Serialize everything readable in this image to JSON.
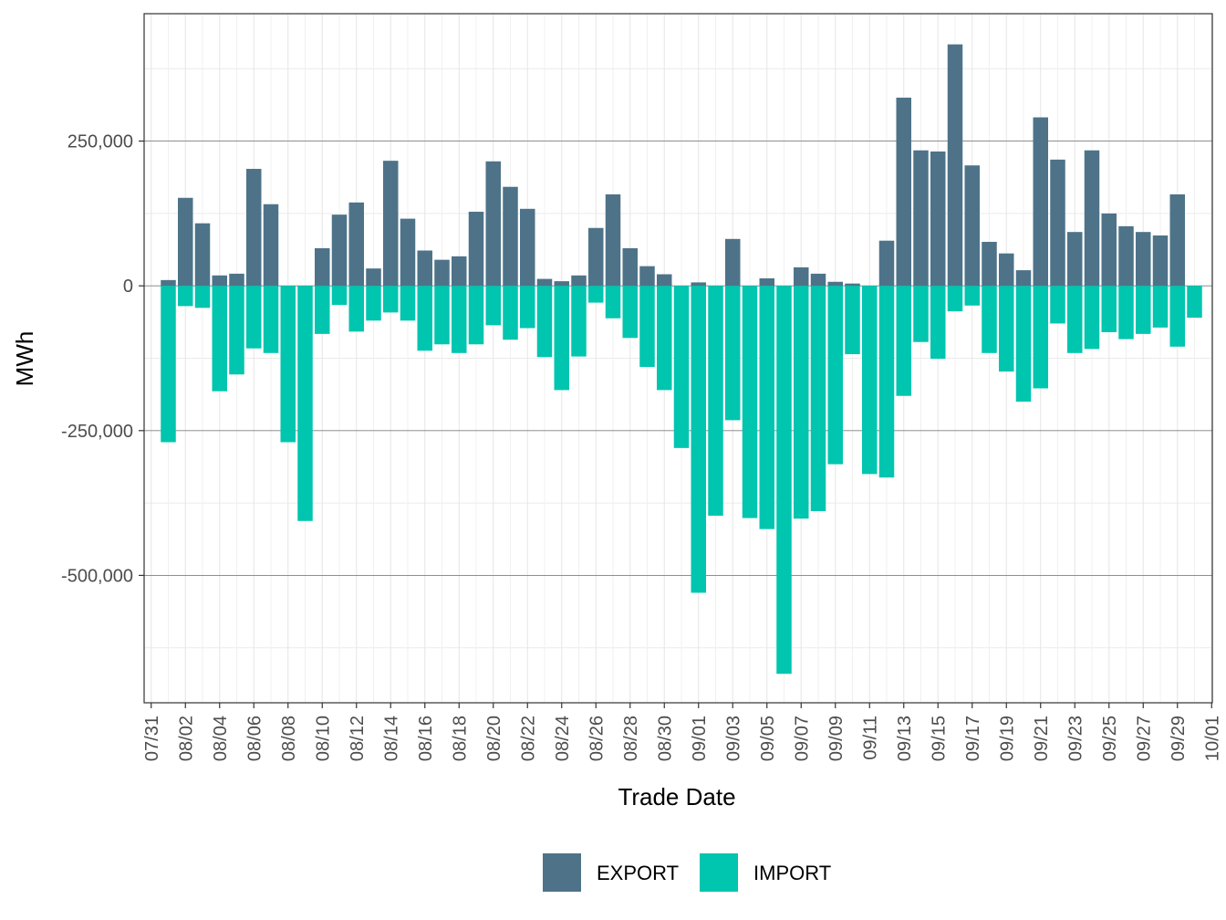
{
  "chart_data": {
    "type": "bar",
    "xlabel": "Trade Date",
    "ylabel": "MWh",
    "ylim": [
      -720000,
      470000
    ],
    "y_ticks": [
      250000,
      0,
      -250000,
      -500000
    ],
    "y_tick_labels": [
      "250,000",
      "0",
      "-250,000",
      "-500,000"
    ],
    "x_tick_labels": [
      "07/31",
      "08/02",
      "08/04",
      "08/06",
      "08/08",
      "08/10",
      "08/12",
      "08/14",
      "08/16",
      "08/18",
      "08/20",
      "08/22",
      "08/24",
      "08/26",
      "08/28",
      "08/30",
      "09/01",
      "09/03",
      "09/05",
      "09/07",
      "09/09",
      "09/11",
      "09/13",
      "09/15",
      "09/17",
      "09/19",
      "09/21",
      "09/23",
      "09/25",
      "09/27",
      "09/29",
      "10/01"
    ],
    "grid": true,
    "legend_position": "bottom",
    "categories": [
      "08/01",
      "08/02",
      "08/03",
      "08/04",
      "08/05",
      "08/06",
      "08/07",
      "08/08",
      "08/09",
      "08/10",
      "08/11",
      "08/12",
      "08/13",
      "08/14",
      "08/15",
      "08/16",
      "08/17",
      "08/18",
      "08/19",
      "08/20",
      "08/21",
      "08/22",
      "08/23",
      "08/24",
      "08/25",
      "08/26",
      "08/27",
      "08/28",
      "08/29",
      "08/30",
      "08/31",
      "09/01",
      "09/02",
      "09/03",
      "09/04",
      "09/05",
      "09/06",
      "09/07",
      "09/08",
      "09/09",
      "09/10",
      "09/11",
      "09/12",
      "09/13",
      "09/14",
      "09/15",
      "09/16",
      "09/17",
      "09/18",
      "09/19",
      "09/20",
      "09/21",
      "09/22",
      "09/23",
      "09/24",
      "09/25",
      "09/26",
      "09/27",
      "09/28",
      "09/29",
      "09/30"
    ],
    "series": [
      {
        "name": "EXPORT",
        "color": "#4e7389",
        "values": [
          10000,
          152000,
          108000,
          18000,
          21000,
          202000,
          141000,
          0,
          0,
          65000,
          123000,
          144000,
          30000,
          216000,
          116000,
          61000,
          45000,
          51000,
          128000,
          215000,
          171000,
          133000,
          12000,
          8000,
          18000,
          100000,
          158000,
          65000,
          34000,
          20000,
          0,
          6000,
          0,
          81000,
          0,
          13000,
          0,
          32000,
          21000,
          7000,
          4000,
          0,
          78000,
          325000,
          234000,
          232000,
          417000,
          208000,
          76000,
          56000,
          27000,
          291000,
          218000,
          93000,
          234000,
          125000,
          103000,
          93000,
          87000,
          158000,
          0
        ]
      },
      {
        "name": "IMPORT",
        "color": "#00c5af",
        "values": [
          -270000,
          -35000,
          -38000,
          -182000,
          -153000,
          -108000,
          -116000,
          -270000,
          -406000,
          -83000,
          -33000,
          -79000,
          -60000,
          -46000,
          -60000,
          -112000,
          -101000,
          -116000,
          -101000,
          -68000,
          -93000,
          -73000,
          -123000,
          -180000,
          -122000,
          -29000,
          -56000,
          -90000,
          -140000,
          -180000,
          -280000,
          -530000,
          -397000,
          -232000,
          -401000,
          -420000,
          -670000,
          -402000,
          -389000,
          -308000,
          -118000,
          -325000,
          -331000,
          -190000,
          -97000,
          -126000,
          -44000,
          -34000,
          -116000,
          -148000,
          -200000,
          -177000,
          -65000,
          -116000,
          -109000,
          -80000,
          -92000,
          -83000,
          -72000,
          -105000,
          -55000
        ]
      }
    ]
  }
}
